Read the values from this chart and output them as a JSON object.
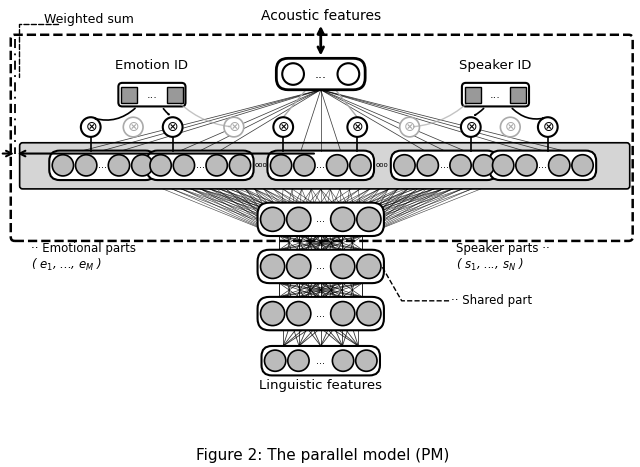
{
  "title": "Figure 2: The parallel model (PM)",
  "title_fontsize": 11,
  "bg_color": "#ffffff",
  "gray_fill": "#bbbbbb",
  "light_gray": "#d8d8d8",
  "white": "#ffffff",
  "black": "#000000",
  "labels": {
    "acoustic": "Acoustic features",
    "emotion_id": "Emotion ID",
    "speaker_id": "Speaker ID",
    "emotional_parts": "Emotional parts",
    "emotional_expr": "( $e_1$, ..., $e_M$ )",
    "speaker_parts": "Speaker parts",
    "speaker_expr": "( $s_1$, ..., $s_N$ )",
    "shared": "Shared part",
    "linguistic": "Linguistic features",
    "weighted_sum": "Weighted sum"
  },
  "layout": {
    "fig_w": 6.4,
    "fig_h": 4.67,
    "dpi": 100
  }
}
